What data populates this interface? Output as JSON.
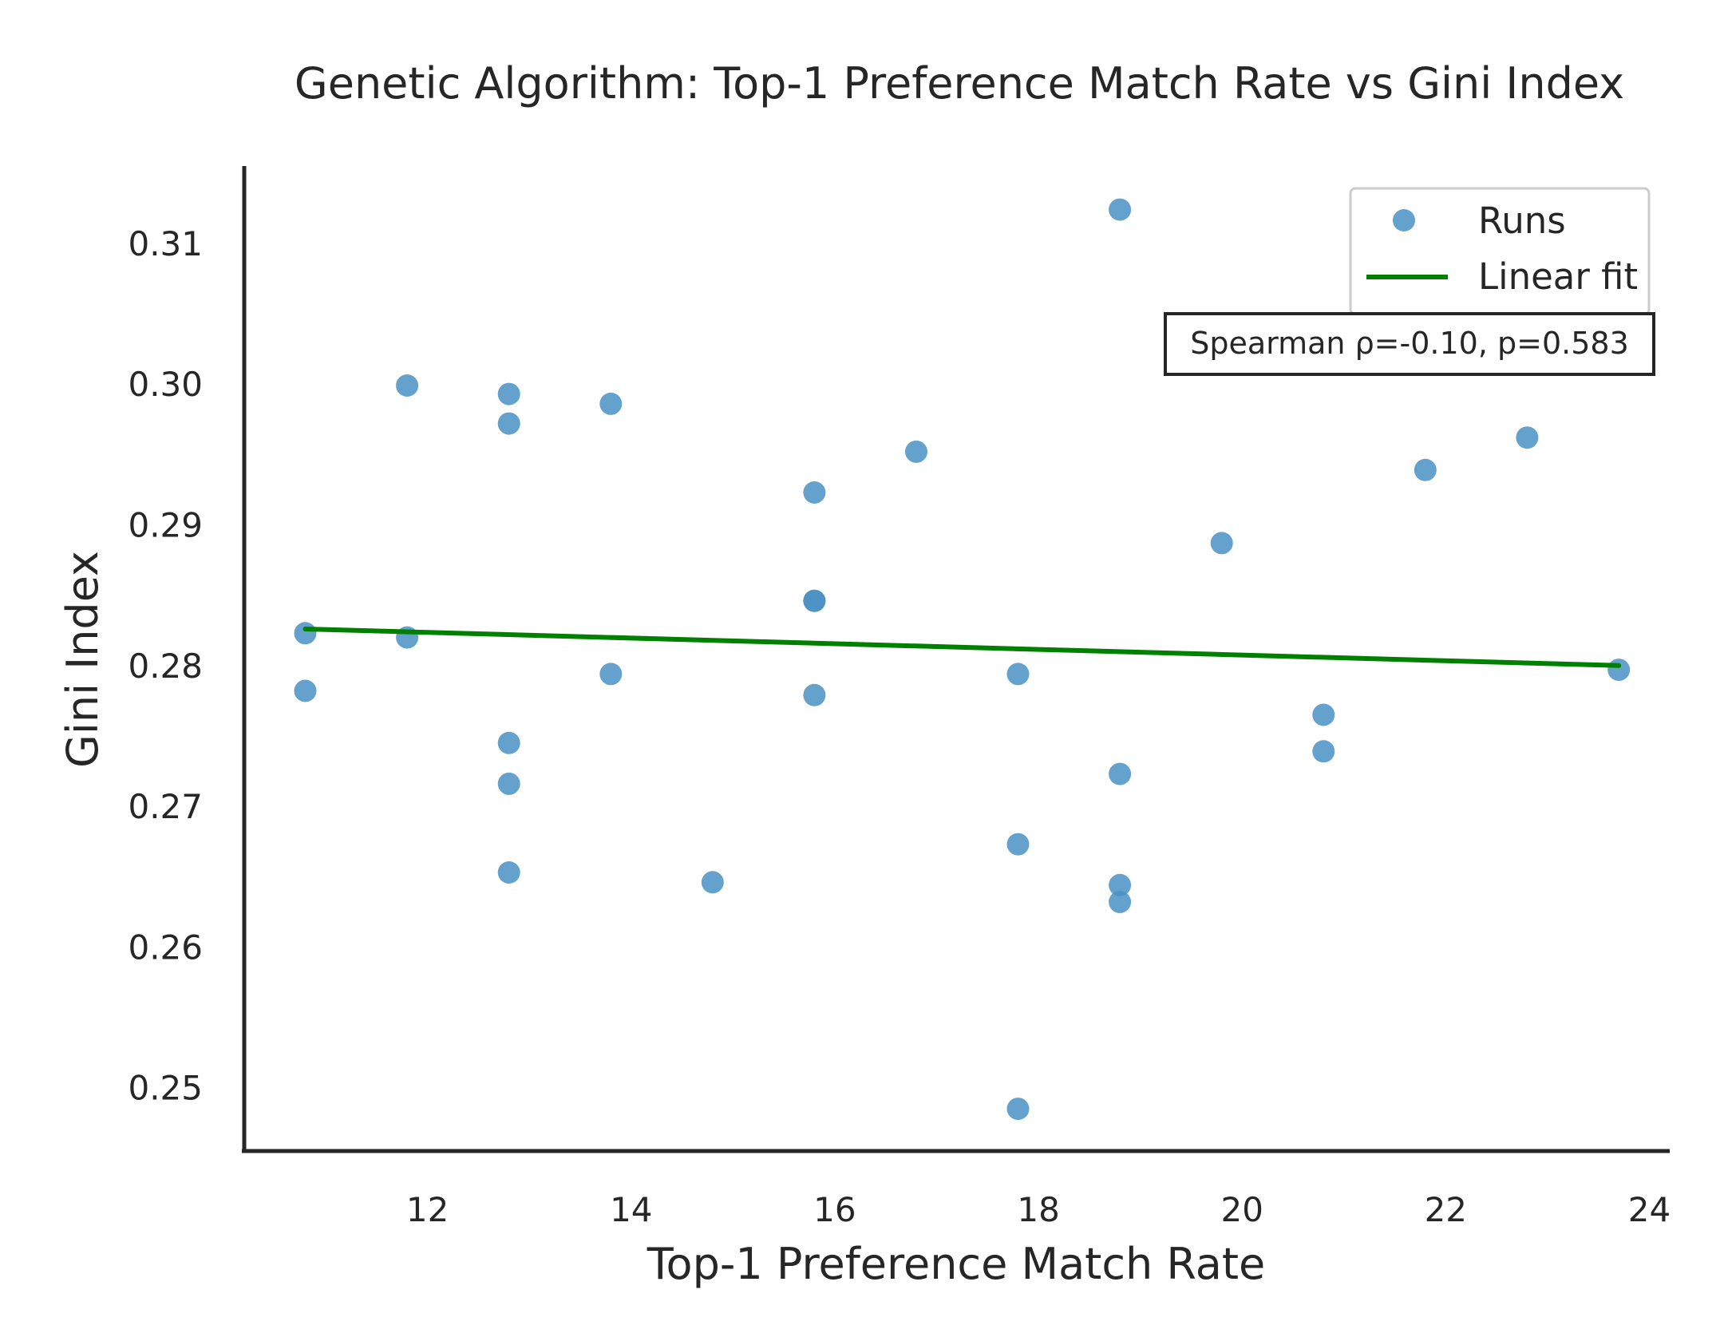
{
  "chart_data": {
    "type": "scatter",
    "title": "Genetic Algorithm: Top-1 Preference Match Rate vs Gini Index",
    "xlabel": "Top-1 Preference Match Rate",
    "ylabel": "Gini Index",
    "xlim": [
      10.2,
      24.2
    ],
    "ylim": [
      0.2455,
      0.3155
    ],
    "xticks": [
      12,
      14,
      16,
      18,
      20,
      22,
      24
    ],
    "yticks": [
      0.25,
      0.26,
      0.27,
      0.28,
      0.29,
      0.3,
      0.31
    ],
    "grid": false,
    "legend_position": "top-right",
    "series": [
      {
        "name": "Runs",
        "color": "#4a90c4",
        "points": [
          {
            "x": 10.8,
            "y": 0.2823
          },
          {
            "x": 10.8,
            "y": 0.2782
          },
          {
            "x": 11.8,
            "y": 0.2999
          },
          {
            "x": 11.8,
            "y": 0.282
          },
          {
            "x": 12.8,
            "y": 0.2993
          },
          {
            "x": 12.8,
            "y": 0.2972
          },
          {
            "x": 12.8,
            "y": 0.2745
          },
          {
            "x": 12.8,
            "y": 0.2716
          },
          {
            "x": 12.8,
            "y": 0.2653
          },
          {
            "x": 13.8,
            "y": 0.2986
          },
          {
            "x": 13.8,
            "y": 0.2794
          },
          {
            "x": 14.8,
            "y": 0.2646
          },
          {
            "x": 15.8,
            "y": 0.2923
          },
          {
            "x": 15.8,
            "y": 0.2846
          },
          {
            "x": 15.8,
            "y": 0.2846
          },
          {
            "x": 15.8,
            "y": 0.2779
          },
          {
            "x": 16.8,
            "y": 0.2952
          },
          {
            "x": 17.8,
            "y": 0.2794
          },
          {
            "x": 17.8,
            "y": 0.2673
          },
          {
            "x": 17.8,
            "y": 0.2485
          },
          {
            "x": 18.8,
            "y": 0.3124
          },
          {
            "x": 18.8,
            "y": 0.2723
          },
          {
            "x": 18.8,
            "y": 0.2644
          },
          {
            "x": 18.8,
            "y": 0.2632
          },
          {
            "x": 19.8,
            "y": 0.2887
          },
          {
            "x": 20.8,
            "y": 0.2765
          },
          {
            "x": 20.8,
            "y": 0.2739
          },
          {
            "x": 21.8,
            "y": 0.2939
          },
          {
            "x": 22.8,
            "y": 0.2962
          },
          {
            "x": 23.7,
            "y": 0.2797
          }
        ]
      },
      {
        "name": "Linear fit",
        "color": "#008000",
        "line": [
          {
            "x": 10.8,
            "y": 0.2826
          },
          {
            "x": 23.7,
            "y": 0.28
          }
        ]
      }
    ],
    "annotation": "Spearman ρ=-0.10, p=0.583"
  }
}
